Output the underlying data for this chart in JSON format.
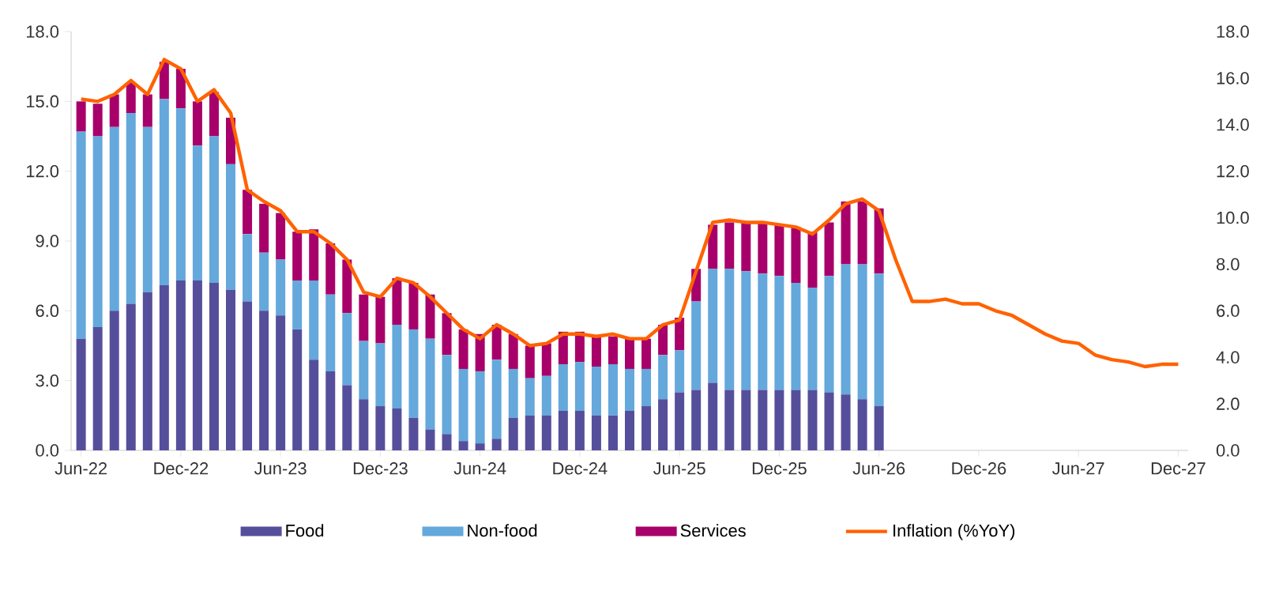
{
  "chart_data": {
    "type": "bar",
    "stacked": true,
    "categories": [
      "Jun-22",
      null,
      null,
      null,
      null,
      null,
      "Dec-22",
      null,
      null,
      null,
      null,
      null,
      "Jun-23",
      null,
      null,
      null,
      null,
      null,
      "Dec-23",
      null,
      null,
      null,
      null,
      null,
      "Jun-24",
      null,
      null,
      null,
      null,
      null,
      "Dec-24",
      null,
      null,
      null,
      null,
      null,
      "Jun-25",
      null,
      null,
      null,
      null,
      null,
      "Dec-25",
      null,
      null,
      null,
      null,
      null,
      "Jun-26",
      null,
      null,
      null,
      null,
      null,
      "Dec-26",
      null,
      null,
      null,
      null,
      null,
      "Jun-27",
      null,
      null,
      null,
      null,
      null,
      "Dec-27"
    ],
    "series": [
      {
        "name": "Food",
        "color": "#554f9b",
        "values": [
          4.8,
          5.3,
          6.0,
          6.3,
          6.8,
          7.1,
          7.3,
          7.3,
          7.2,
          6.9,
          6.4,
          6.0,
          5.8,
          5.2,
          3.9,
          3.4,
          2.8,
          2.2,
          1.9,
          1.8,
          1.4,
          0.9,
          0.7,
          0.4,
          0.3,
          0.5,
          1.4,
          1.5,
          1.5,
          1.7,
          1.7,
          1.5,
          1.5,
          1.7,
          1.9,
          2.2,
          2.5,
          2.6,
          2.9,
          2.6,
          2.6,
          2.6,
          2.6,
          2.6,
          2.6,
          2.5,
          2.4,
          2.2,
          1.9,
          null,
          null,
          null,
          null,
          null,
          null,
          null,
          null,
          null,
          null,
          null,
          null,
          null,
          null,
          null,
          null,
          null,
          null
        ]
      },
      {
        "name": "Non-food",
        "color": "#64a8dc",
        "values": [
          8.9,
          8.2,
          7.9,
          8.2,
          7.1,
          8.0,
          7.4,
          5.8,
          6.3,
          5.4,
          2.9,
          2.5,
          2.4,
          2.1,
          3.4,
          3.3,
          3.1,
          2.5,
          2.7,
          3.6,
          3.8,
          3.9,
          3.4,
          3.1,
          3.1,
          3.4,
          2.1,
          1.6,
          1.7,
          2.0,
          2.1,
          2.1,
          2.2,
          1.8,
          1.6,
          1.9,
          1.8,
          3.8,
          4.9,
          5.2,
          5.1,
          5.0,
          4.9,
          4.6,
          4.4,
          5.0,
          5.6,
          5.8,
          5.7,
          null,
          null,
          null,
          null,
          null,
          null,
          null,
          null,
          null,
          null,
          null,
          null,
          null,
          null,
          null,
          null,
          null,
          null
        ]
      },
      {
        "name": "Services",
        "color": "#a8006a",
        "values": [
          1.3,
          1.4,
          1.4,
          1.3,
          1.4,
          1.6,
          1.7,
          1.9,
          1.9,
          2.0,
          1.9,
          2.1,
          2.0,
          2.1,
          2.2,
          2.2,
          2.3,
          2.0,
          2.0,
          2.0,
          2.0,
          1.9,
          1.8,
          1.7,
          1.6,
          1.5,
          1.5,
          1.4,
          1.4,
          1.4,
          1.3,
          1.3,
          1.2,
          1.3,
          1.3,
          1.3,
          1.4,
          1.4,
          1.9,
          2.0,
          2.1,
          2.2,
          2.2,
          2.4,
          2.4,
          2.3,
          2.7,
          2.7,
          2.8,
          null,
          null,
          null,
          null,
          null,
          null,
          null,
          null,
          null,
          null,
          null,
          null,
          null,
          null,
          null,
          null,
          null,
          null
        ]
      },
      {
        "name": "Inflation (%YoY)",
        "type": "line",
        "axis": "y2",
        "color": "#ff6200",
        "values": [
          15.1,
          15.0,
          15.3,
          15.9,
          15.3,
          16.8,
          16.4,
          15.0,
          15.5,
          14.5,
          11.2,
          10.7,
          10.3,
          9.4,
          9.4,
          8.9,
          8.2,
          6.8,
          6.6,
          7.4,
          7.2,
          6.6,
          5.9,
          5.2,
          4.8,
          5.4,
          5.0,
          4.5,
          4.6,
          5.0,
          5.0,
          4.9,
          5.0,
          4.8,
          4.8,
          5.4,
          5.6,
          7.7,
          9.8,
          9.9,
          9.8,
          9.8,
          9.7,
          9.6,
          9.3,
          9.9,
          10.6,
          10.8,
          10.3,
          8.2,
          6.4,
          6.4,
          6.5,
          6.3,
          6.3,
          6.0,
          5.8,
          5.4,
          5.0,
          4.7,
          4.6,
          4.1,
          3.9,
          3.8,
          3.6,
          3.7,
          3.7
        ]
      }
    ],
    "ylim": [
      0,
      18
    ],
    "yticks": [
      {
        "value": 0,
        "label": "0.0"
      },
      {
        "value": 3,
        "label": "3.0"
      },
      {
        "value": 6,
        "label": "6.0"
      },
      {
        "value": 9,
        "label": "9.0"
      },
      {
        "value": 12,
        "label": "12.0"
      },
      {
        "value": 15,
        "label": "15.0"
      },
      {
        "value": 18,
        "label": "18.0"
      }
    ],
    "y2lim": [
      0,
      18
    ],
    "y2ticks": [
      {
        "value": 0,
        "label": "0.0"
      },
      {
        "value": 2,
        "label": "2.0"
      },
      {
        "value": 4,
        "label": "4.0"
      },
      {
        "value": 6,
        "label": "6.0"
      },
      {
        "value": 8,
        "label": "8.0"
      },
      {
        "value": 10,
        "label": "10.0"
      },
      {
        "value": 12,
        "label": "12.0"
      },
      {
        "value": 14,
        "label": "14.0"
      },
      {
        "value": 16,
        "label": "16.0"
      },
      {
        "value": 18,
        "label": "18.0"
      }
    ],
    "legend": "bottom"
  }
}
